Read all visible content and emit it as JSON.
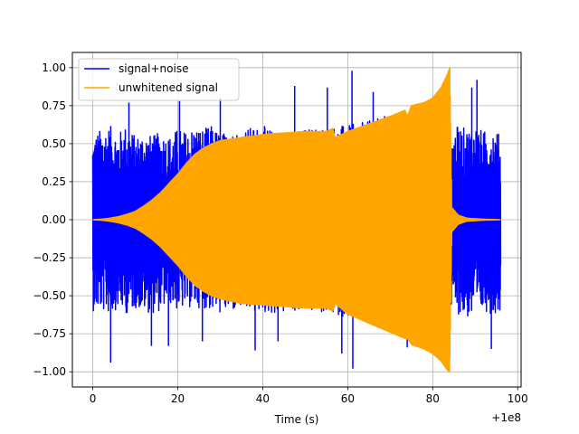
{
  "chart_data": {
    "type": "line",
    "title": "",
    "xlabel": "Time (s)",
    "ylabel": "",
    "x_offset_label": "+1e8",
    "xlim": [
      -4.8,
      100.8
    ],
    "ylim": [
      -1.1,
      1.1
    ],
    "x_ticks": [
      0,
      20,
      40,
      60,
      80,
      100
    ],
    "x_tick_labels": [
      "0",
      "20",
      "40",
      "60",
      "80",
      "100"
    ],
    "y_ticks": [
      -1.0,
      -0.75,
      -0.5,
      -0.25,
      0.0,
      0.25,
      0.5,
      0.75,
      1.0
    ],
    "y_tick_labels": [
      "−1.00",
      "−0.75",
      "−0.50",
      "−0.25",
      "0.00",
      "0.25",
      "0.50",
      "0.75",
      "1.00"
    ],
    "grid": true,
    "legend_position": "upper left",
    "series": [
      {
        "name": "signal+noise",
        "color": "#0000ff",
        "style": "oscillating",
        "x_range": [
          0,
          96
        ],
        "envelope_x": [
          0,
          2,
          4,
          6,
          8,
          10,
          12,
          14,
          16,
          18,
          20,
          22,
          24,
          26,
          28,
          30,
          35,
          40,
          45,
          50,
          55,
          60,
          65,
          70,
          75,
          80,
          83,
          84,
          86,
          88,
          90,
          92,
          94,
          96
        ],
        "envelope_upper": [
          0.55,
          0.6,
          0.62,
          0.57,
          0.63,
          0.55,
          0.58,
          0.55,
          0.58,
          0.55,
          0.6,
          0.58,
          0.62,
          0.6,
          0.62,
          0.57,
          0.6,
          0.62,
          0.55,
          0.6,
          0.62,
          0.62,
          0.65,
          0.7,
          0.72,
          0.72,
          0.6,
          0.55,
          0.62,
          0.6,
          0.62,
          0.58,
          0.62,
          0.55
        ],
        "envelope_lower": [
          -0.6,
          -0.6,
          -0.62,
          -0.58,
          -0.62,
          -0.58,
          -0.6,
          -0.62,
          -0.6,
          -0.55,
          -0.6,
          -0.58,
          -0.58,
          -0.58,
          -0.6,
          -0.62,
          -0.6,
          -0.62,
          -0.62,
          -0.6,
          -0.62,
          -0.64,
          -0.68,
          -0.7,
          -0.72,
          -0.72,
          -0.62,
          -0.6,
          -0.62,
          -0.65,
          -0.65,
          -0.6,
          -0.62,
          -0.6
        ],
        "spikes": [
          {
            "x": 4.2,
            "y": -0.94
          },
          {
            "x": 8.5,
            "y": 0.77
          },
          {
            "x": 13.8,
            "y": -0.83
          },
          {
            "x": 17.8,
            "y": -0.83
          },
          {
            "x": 20.4,
            "y": 0.78
          },
          {
            "x": 25.8,
            "y": -0.8
          },
          {
            "x": 30.0,
            "y": 0.8
          },
          {
            "x": 38.2,
            "y": -0.86
          },
          {
            "x": 43.6,
            "y": -0.8
          },
          {
            "x": 47.5,
            "y": 0.88
          },
          {
            "x": 55.2,
            "y": 0.87
          },
          {
            "x": 58.6,
            "y": -0.88
          },
          {
            "x": 61.0,
            "y": 0.98
          },
          {
            "x": 61.2,
            "y": -0.98
          },
          {
            "x": 66.0,
            "y": 0.84
          },
          {
            "x": 74.0,
            "y": -0.84
          },
          {
            "x": 76.0,
            "y": -0.78
          },
          {
            "x": 89.2,
            "y": 0.87
          },
          {
            "x": 90.4,
            "y": 0.92
          },
          {
            "x": 93.8,
            "y": -0.85
          }
        ]
      },
      {
        "name": "unwhitened signal",
        "color": "#ffa500",
        "style": "chirp",
        "x_range": [
          0,
          96
        ],
        "envelope_x": [
          0,
          2,
          4,
          6,
          8,
          10,
          12,
          14,
          16,
          18,
          20,
          22,
          24,
          26,
          28,
          30,
          35,
          40,
          45,
          50,
          55,
          56.5,
          57,
          60,
          65,
          70,
          73.5,
          74,
          75,
          78,
          80,
          82,
          83.5,
          84,
          84.5,
          86,
          88,
          92,
          96
        ],
        "envelope_upper": [
          0.0,
          0.003,
          0.01,
          0.02,
          0.035,
          0.055,
          0.09,
          0.13,
          0.18,
          0.24,
          0.3,
          0.37,
          0.43,
          0.47,
          0.5,
          0.52,
          0.54,
          0.56,
          0.57,
          0.58,
          0.58,
          0.6,
          0.54,
          0.58,
          0.63,
          0.68,
          0.72,
          0.68,
          0.75,
          0.77,
          0.8,
          0.87,
          0.96,
          1.0,
          0.08,
          0.03,
          0.01,
          0.003,
          0.0
        ],
        "envelope_lower": [
          0.0,
          -0.003,
          -0.01,
          -0.02,
          -0.035,
          -0.055,
          -0.09,
          -0.13,
          -0.18,
          -0.24,
          -0.3,
          -0.37,
          -0.43,
          -0.47,
          -0.5,
          -0.52,
          -0.55,
          -0.56,
          -0.57,
          -0.58,
          -0.58,
          -0.6,
          -0.55,
          -0.62,
          -0.68,
          -0.74,
          -0.78,
          -0.78,
          -0.82,
          -0.85,
          -0.88,
          -0.93,
          -0.99,
          -1.0,
          -0.08,
          -0.03,
          -0.01,
          -0.003,
          0.0
        ]
      }
    ]
  },
  "colors": {
    "grid": "#b0b0b0",
    "axes": "#000000",
    "background": "#ffffff",
    "legend_border": "#cccccc"
  }
}
